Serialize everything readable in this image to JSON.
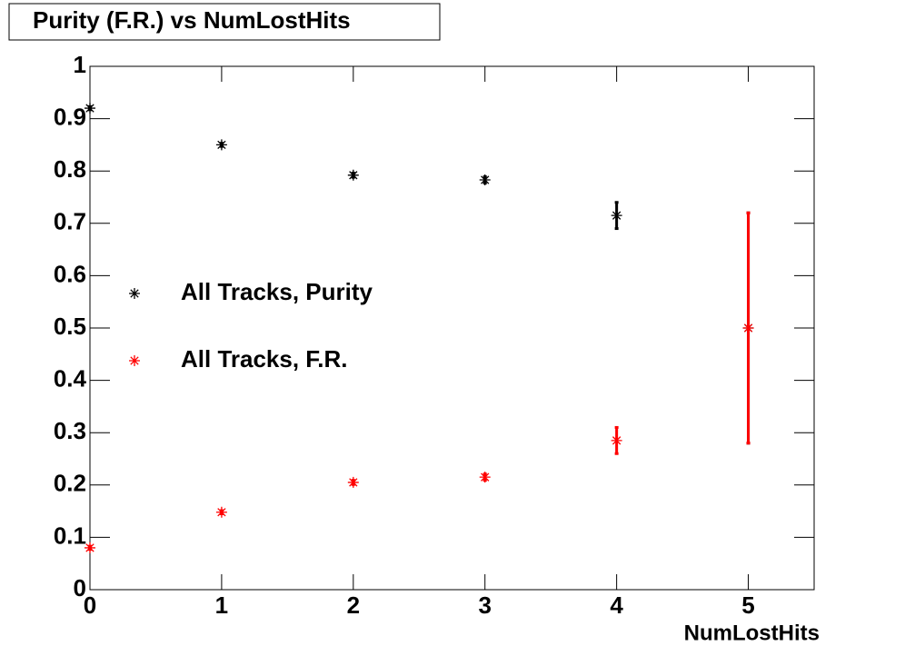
{
  "chart_data": {
    "type": "scatter",
    "title": "Purity (F.R.) vs NumLostHits",
    "x_label": "NumLostHits",
    "x": [
      0,
      1,
      2,
      3,
      4,
      5
    ],
    "series": [
      {
        "name": "All Tracks, Purity",
        "color": "#000000",
        "values": [
          0.92,
          0.85,
          0.792,
          0.783,
          0.715,
          0.5
        ],
        "errors": [
          0.003,
          0.003,
          0.004,
          0.006,
          0.025,
          0.22
        ]
      },
      {
        "name": "All Tracks, F.R.",
        "color": "#ff0000",
        "values": [
          0.08,
          0.148,
          0.205,
          0.215,
          0.285,
          0.5
        ],
        "errors": [
          0.003,
          0.003,
          0.004,
          0.006,
          0.025,
          0.22
        ]
      }
    ],
    "xlim": [
      0,
      5.5
    ],
    "ylim": [
      0,
      1
    ],
    "xticks": [
      0,
      1,
      2,
      3,
      4,
      5
    ],
    "yticks": [
      0,
      0.1,
      0.2,
      0.3,
      0.4,
      0.5,
      0.6,
      0.7,
      0.8,
      0.9,
      1
    ],
    "grid": false
  }
}
